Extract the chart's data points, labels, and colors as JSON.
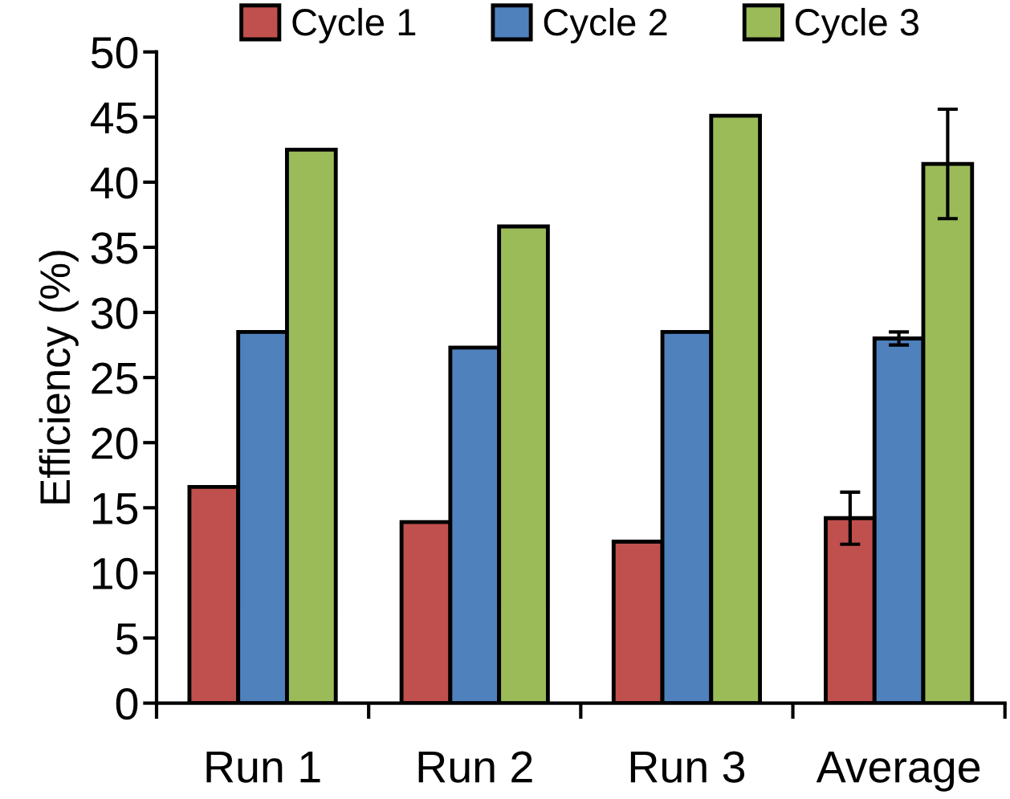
{
  "chart_data": {
    "type": "bar",
    "ylabel": "Efficiency (%)",
    "categories": [
      "Run 1",
      "Run 2",
      "Run 3",
      "Average"
    ],
    "series": [
      {
        "name": "Cycle 1",
        "color": "#c0504d",
        "values": [
          16.6,
          13.9,
          12.4,
          14.2
        ],
        "errors": [
          null,
          null,
          null,
          2.0
        ]
      },
      {
        "name": "Cycle 2",
        "color": "#4f81bd",
        "values": [
          28.5,
          27.3,
          28.5,
          28.0
        ],
        "errors": [
          null,
          null,
          null,
          0.5
        ]
      },
      {
        "name": "Cycle 3",
        "color": "#9bbb59",
        "values": [
          42.5,
          36.6,
          45.1,
          41.4
        ],
        "errors": [
          null,
          null,
          null,
          4.2
        ]
      }
    ],
    "ylim": [
      0,
      50
    ],
    "yticks": [
      0,
      5,
      10,
      15,
      20,
      25,
      30,
      35,
      40,
      45,
      50
    ],
    "grid": false,
    "legend": "top"
  }
}
